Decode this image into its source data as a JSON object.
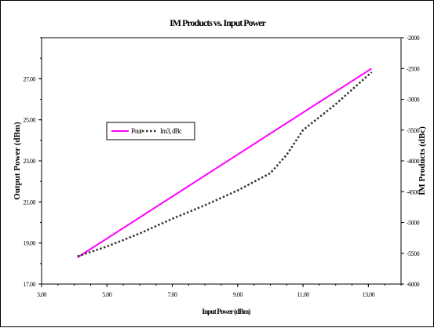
{
  "chart_data": {
    "type": "line",
    "title": "IM Products vs. Input Power",
    "xlabel": "Input Power (dBm)",
    "ylabel": "Output Power (dBm)",
    "y2label": "IM Products (dBc)",
    "xlim": [
      3.0,
      14.0
    ],
    "ylim": [
      17.0,
      29.0
    ],
    "y2lim": [
      -6000,
      -2000
    ],
    "grid": false,
    "legend_position": "center-left",
    "x_ticks": [
      3.0,
      5.0,
      7.0,
      9.0,
      11.0,
      13.0
    ],
    "x_tick_labels": [
      "3.00",
      "5.00",
      "7.00",
      "9.00",
      "11.00",
      "13.00"
    ],
    "y_ticks": [
      17,
      19,
      21,
      23,
      25,
      27
    ],
    "y_tick_labels": [
      "17.00",
      "19.00",
      "21.00",
      "23.00",
      "25.00",
      "27.00"
    ],
    "y2_ticks": [
      -6000,
      -5500,
      -5000,
      -4500,
      -4000,
      -3500,
      -3000,
      -2500,
      -2000
    ],
    "y2_tick_labels": [
      "-6000",
      "-5500",
      "-5000",
      "-4500",
      "-4000",
      "-3500",
      "-3000",
      "-2500",
      "-2000"
    ],
    "series": [
      {
        "name": "Pout",
        "axis": "left",
        "color": "#ff00ff",
        "dash": "solid",
        "x": [
          4.1,
          13.1
        ],
        "y": [
          18.3,
          27.5
        ]
      },
      {
        "name": "Im3, dBc",
        "axis": "right",
        "color": "#333333",
        "dash": "dotted",
        "x": [
          4.1,
          5.0,
          6.0,
          7.0,
          8.0,
          9.0,
          10.0,
          10.5,
          11.0,
          12.0,
          13.1
        ],
        "y": [
          -5550,
          -5390,
          -5180,
          -4940,
          -4720,
          -4480,
          -4200,
          -3900,
          -3500,
          -3080,
          -2560
        ]
      }
    ]
  }
}
